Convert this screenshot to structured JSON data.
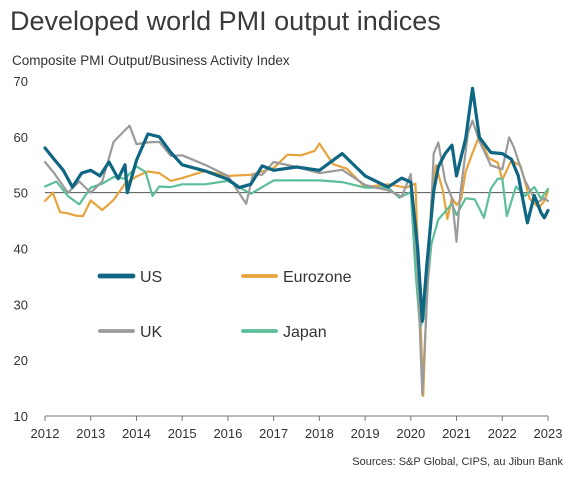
{
  "chart_data": {
    "type": "line",
    "title": "Developed world PMI output indices",
    "subtitle": "Composite PMI Output/Business Activity Index",
    "source": "Sources: S&P Global, CIPS, au Jibun Bank",
    "ylim": [
      10,
      70
    ],
    "yticks": [
      10,
      20,
      30,
      40,
      50,
      60,
      70
    ],
    "xlim": [
      2012.0,
      2023.0
    ],
    "xticks": [
      "2012",
      "2013",
      "2014",
      "2015",
      "2016",
      "2017",
      "2018",
      "2019",
      "2020",
      "2021",
      "2022",
      "2023"
    ],
    "reference_line": 50,
    "legend_position": "inside-lower-left",
    "series": [
      {
        "name": "Eurozone",
        "color": "#e8a33d",
        "width": 2.2,
        "x": [
          2012.0,
          2012.17,
          2012.33,
          2012.5,
          2012.67,
          2012.83,
          2013.0,
          2013.25,
          2013.5,
          2013.75,
          2014.0,
          2014.25,
          2014.5,
          2014.75,
          2015.0,
          2015.5,
          2016.0,
          2016.5,
          2017.0,
          2017.3,
          2017.6,
          2017.9,
          2018.0,
          2018.3,
          2018.6,
          2019.0,
          2019.5,
          2019.9,
          2020.1,
          2020.2,
          2020.27,
          2020.35,
          2020.45,
          2020.55,
          2020.7,
          2020.8,
          2020.9,
          2021.0,
          2021.1,
          2021.2,
          2021.35,
          2021.5,
          2021.7,
          2021.9,
          2022.0,
          2022.2,
          2022.4,
          2022.6,
          2022.8,
          2022.92,
          2023.0
        ],
        "values": [
          48.5,
          50.0,
          46.5,
          46.3,
          45.9,
          45.8,
          48.6,
          46.9,
          48.7,
          51.6,
          52.9,
          53.8,
          53.5,
          52.1,
          52.6,
          53.9,
          53.0,
          53.2,
          54.4,
          56.8,
          56.7,
          57.5,
          58.8,
          55.1,
          54.3,
          51.0,
          51.5,
          50.9,
          51.6,
          29.7,
          13.6,
          31.9,
          48.5,
          54.9,
          50.4,
          45.3,
          49.1,
          47.8,
          48.8,
          53.8,
          57.1,
          60.2,
          56.2,
          55.4,
          52.3,
          55.8,
          54.8,
          48.9,
          47.3,
          48.5,
          50.3
        ]
      },
      {
        "name": "Japan",
        "color": "#5cbf98",
        "width": 2.2,
        "x": [
          2012.0,
          2012.25,
          2012.5,
          2012.75,
          2013.0,
          2013.25,
          2013.5,
          2013.75,
          2014.0,
          2014.2,
          2014.35,
          2014.5,
          2014.75,
          2015.0,
          2015.5,
          2016.0,
          2016.5,
          2017.0,
          2017.5,
          2018.0,
          2018.5,
          2019.0,
          2019.5,
          2019.75,
          2020.0,
          2020.1,
          2020.2,
          2020.3,
          2020.45,
          2020.6,
          2020.75,
          2020.9,
          2021.0,
          2021.2,
          2021.4,
          2021.6,
          2021.75,
          2021.9,
          2022.0,
          2022.1,
          2022.3,
          2022.5,
          2022.7,
          2022.85,
          2023.0
        ],
        "values": [
          51.1,
          52.0,
          49.4,
          47.9,
          50.9,
          51.6,
          52.8,
          52.5,
          54.7,
          53.7,
          49.4,
          51.1,
          51.0,
          51.5,
          51.5,
          52.1,
          49.8,
          52.2,
          52.2,
          52.2,
          51.9,
          50.9,
          50.9,
          49.1,
          50.1,
          36.2,
          25.8,
          27.8,
          40.8,
          45.2,
          46.6,
          48.0,
          46.0,
          49.0,
          48.8,
          45.5,
          50.7,
          52.5,
          52.5,
          45.8,
          51.1,
          49.4,
          51.0,
          48.9,
          50.7
        ]
      },
      {
        "name": "UK",
        "color": "#9b9b9b",
        "width": 2.2,
        "x": [
          2012.0,
          2012.2,
          2012.5,
          2012.75,
          2013.0,
          2013.25,
          2013.5,
          2013.75,
          2013.85,
          2014.0,
          2014.25,
          2014.5,
          2014.75,
          2015.0,
          2015.5,
          2016.0,
          2016.4,
          2016.55,
          2016.75,
          2017.0,
          2017.5,
          2018.0,
          2018.5,
          2019.0,
          2019.5,
          2019.8,
          2020.0,
          2020.15,
          2020.25,
          2020.35,
          2020.5,
          2020.6,
          2020.75,
          2020.9,
          2021.0,
          2021.08,
          2021.25,
          2021.35,
          2021.5,
          2021.75,
          2022.0,
          2022.15,
          2022.25,
          2022.5,
          2022.75,
          2022.92,
          2023.0
        ],
        "values": [
          55.5,
          53.5,
          50.0,
          52.0,
          50.0,
          52.0,
          59.1,
          61.2,
          62.0,
          58.7,
          59.0,
          59.1,
          56.6,
          56.7,
          55.0,
          53.0,
          48.0,
          53.3,
          53.2,
          55.5,
          54.6,
          53.5,
          54.1,
          51.4,
          50.4,
          49.3,
          53.3,
          36.0,
          13.8,
          30.0,
          57.0,
          59.0,
          52.1,
          49.0,
          41.2,
          49.6,
          60.7,
          62.9,
          59.2,
          54.9,
          54.2,
          59.9,
          58.2,
          52.1,
          48.2,
          49.0,
          48.5
        ]
      },
      {
        "name": "US",
        "color": "#0e6683",
        "width": 3.2,
        "x": [
          2012.0,
          2012.2,
          2012.4,
          2012.6,
          2012.8,
          2013.0,
          2013.2,
          2013.4,
          2013.6,
          2013.75,
          2013.8,
          2014.0,
          2014.25,
          2014.5,
          2014.75,
          2015.0,
          2015.5,
          2016.0,
          2016.25,
          2016.5,
          2016.75,
          2017.0,
          2017.5,
          2018.0,
          2018.5,
          2019.0,
          2019.5,
          2019.8,
          2020.0,
          2020.15,
          2020.25,
          2020.35,
          2020.5,
          2020.6,
          2020.75,
          2020.9,
          2021.0,
          2021.2,
          2021.35,
          2021.5,
          2021.75,
          2022.0,
          2022.2,
          2022.35,
          2022.55,
          2022.7,
          2022.85,
          2022.92,
          2023.0
        ],
        "values": [
          58.0,
          56.0,
          54.0,
          51.0,
          53.5,
          54.0,
          53.0,
          55.5,
          52.5,
          55.0,
          50.0,
          55.8,
          60.5,
          60.0,
          57.2,
          55.0,
          53.9,
          52.4,
          50.9,
          51.5,
          54.8,
          54.0,
          54.6,
          54.0,
          57.0,
          53.0,
          51.0,
          52.6,
          51.9,
          40.0,
          27.0,
          37.0,
          50.3,
          54.6,
          57.0,
          58.5,
          53.0,
          59.7,
          68.7,
          59.9,
          57.2,
          57.0,
          56.0,
          53.0,
          44.6,
          49.5,
          46.4,
          45.5,
          46.8
        ]
      }
    ]
  }
}
